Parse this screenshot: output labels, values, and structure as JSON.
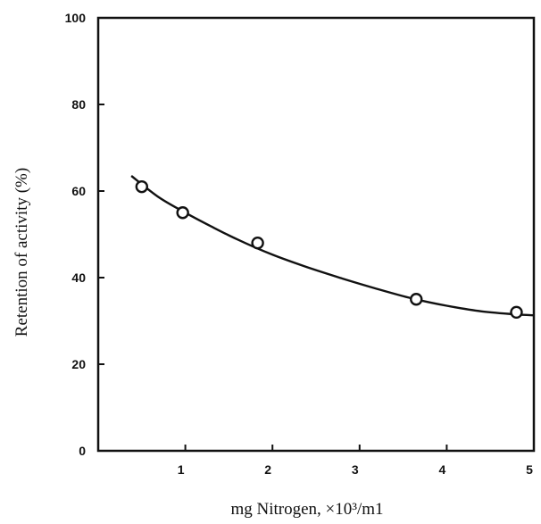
{
  "chart_data": {
    "type": "scatter",
    "title": "",
    "xlabel": "mg Nitrogen, ×10³/m1",
    "ylabel": "Retention of activity (%)",
    "xlim": [
      0,
      5
    ],
    "ylim": [
      0,
      100
    ],
    "xticks": [
      "1",
      "2",
      "3",
      "4",
      "5"
    ],
    "yticks": [
      "0",
      "20",
      "40",
      "60",
      "80",
      "100"
    ],
    "grid": false,
    "series": [
      {
        "marker": "open-circle",
        "x": [
          0.5,
          0.97,
          1.83,
          3.65,
          4.8
        ],
        "y": [
          61,
          55,
          48,
          35,
          32
        ]
      }
    ],
    "fit_curve": {
      "style": "solid",
      "x": [
        0.38,
        0.7,
        1.0,
        1.3,
        1.6,
        2.0,
        2.4,
        2.8,
        3.2,
        3.6,
        4.0,
        4.4,
        4.8,
        5.0
      ],
      "y": [
        63.5,
        58.5,
        55,
        51.8,
        48.8,
        45.3,
        42.4,
        39.8,
        37.4,
        35.2,
        33.5,
        32.2,
        31.5,
        31.3
      ]
    },
    "colors": {
      "ink": "#111111",
      "background": "#ffffff"
    }
  }
}
